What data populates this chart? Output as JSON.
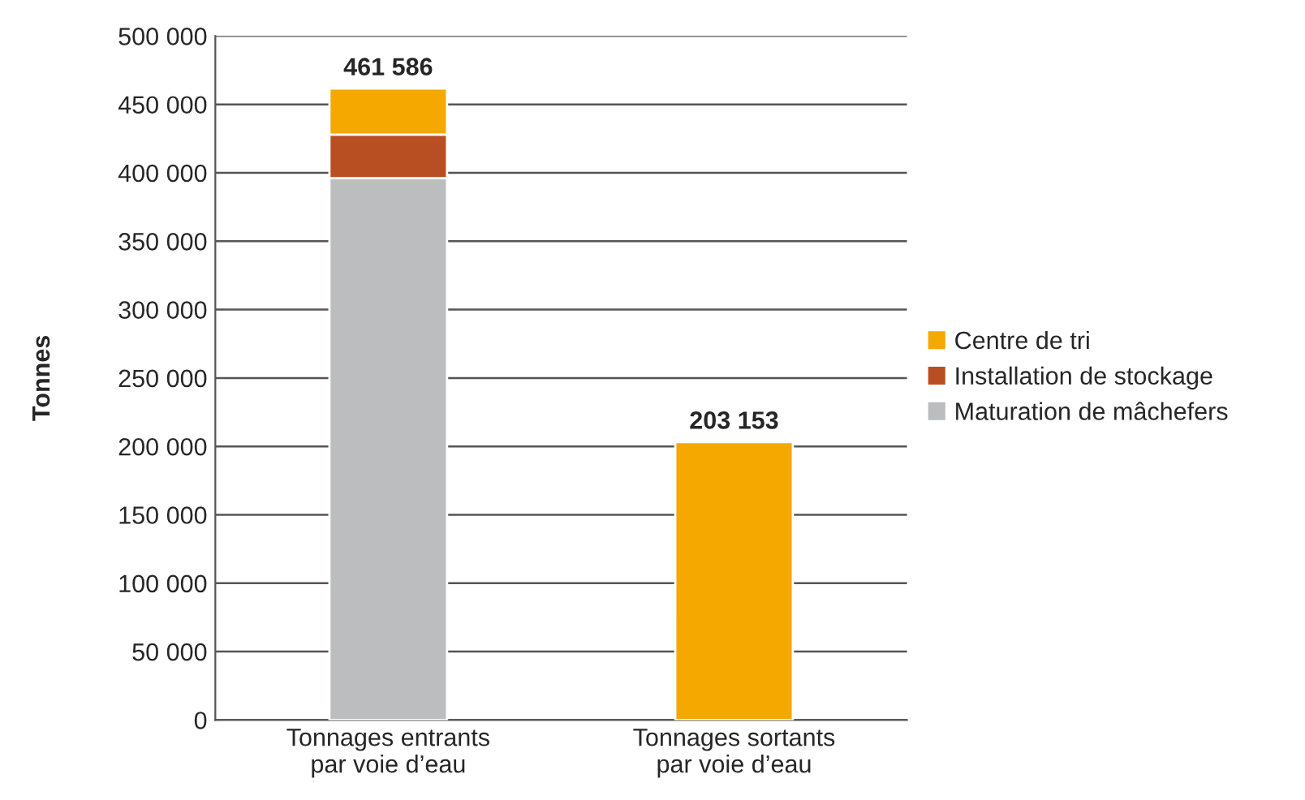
{
  "chart_data": {
    "type": "bar",
    "stacked": true,
    "ylabel": "Tonnes",
    "categories": [
      "Tonnages entrants\npar voie d’eau",
      "Tonnages sortants\npar voie d’eau"
    ],
    "series": [
      {
        "name": "Maturation de mâchefers",
        "color": "#bcbdbf",
        "values": [
          396000,
          null
        ]
      },
      {
        "name": "Installation de stockage",
        "color": "#b84f22",
        "values": [
          32000,
          null
        ]
      },
      {
        "name": "Centre de tri",
        "color": "#f5a800",
        "values": [
          33586,
          203153
        ]
      }
    ],
    "totals": [
      "461 586",
      "203 153"
    ],
    "ylim": [
      0,
      500000
    ],
    "yticks": [
      0,
      {
        "value": 50000,
        "label": "50 000"
      },
      {
        "value": 100000,
        "label": "100 000"
      },
      {
        "value": 150000,
        "label": "150 000"
      },
      {
        "value": 200000,
        "label": "200 000"
      },
      {
        "value": 250000,
        "label": "250 000"
      },
      {
        "value": 300000,
        "label": "300 000"
      },
      {
        "value": 350000,
        "label": "350 000"
      },
      {
        "value": 400000,
        "label": "400 000"
      },
      {
        "value": 450000,
        "label": "450 000"
      },
      {
        "value": 500000,
        "label": "500 000"
      }
    ],
    "grid": "y",
    "legend": "right"
  }
}
